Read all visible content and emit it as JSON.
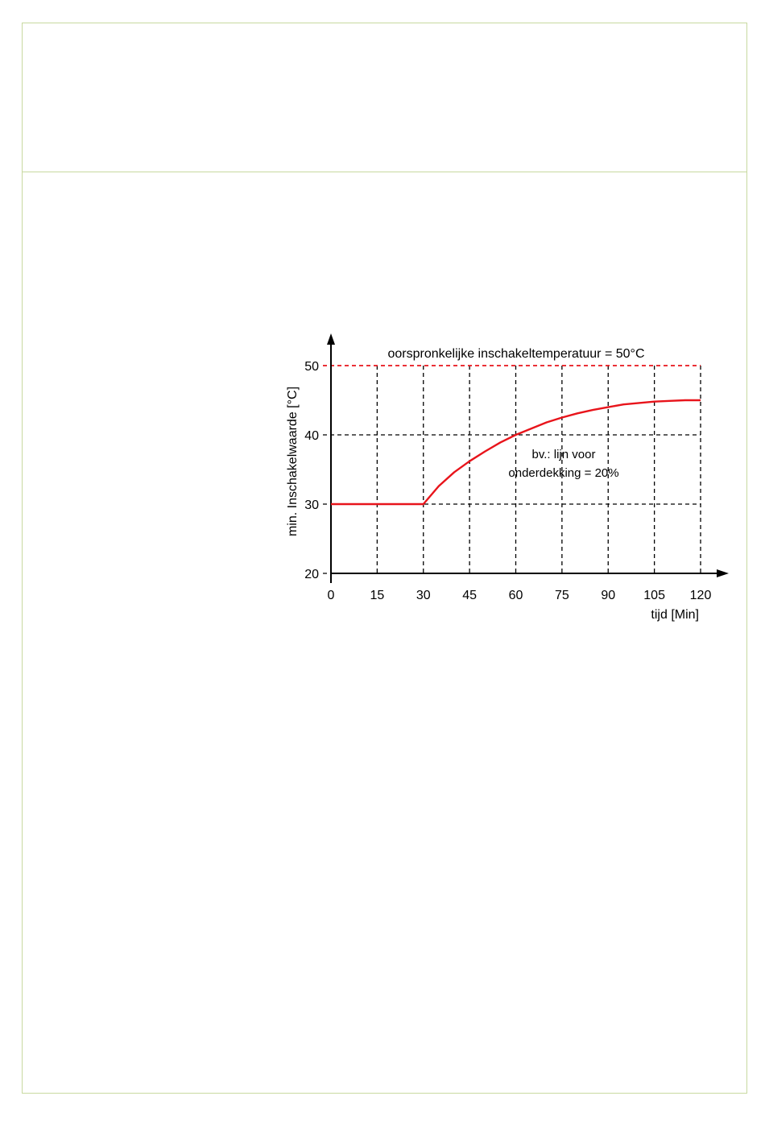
{
  "colors": {
    "frame": "#c8d9a0",
    "curve": "#e8141b",
    "reference": "#e8141b",
    "grid": "#000000"
  },
  "chart_data": {
    "type": "line",
    "title": "",
    "xlabel": "tijd [Min]",
    "ylabel": "min. Inschakelwaarde [°C]",
    "xlim": [
      0,
      120
    ],
    "ylim": [
      20,
      50
    ],
    "x_ticks": [
      0,
      15,
      30,
      45,
      60,
      75,
      90,
      105,
      120
    ],
    "y_ticks": [
      20,
      30,
      40,
      50
    ],
    "x_tick_labels": [
      "0",
      "15",
      "30",
      "45",
      "60",
      "75",
      "90",
      "105",
      "120"
    ],
    "y_tick_labels": [
      "20",
      "30",
      "40",
      "50"
    ],
    "grid": true,
    "reference_line": {
      "y": 50,
      "label": "oorspronkelijke inschakeltemperatuur = 50°C"
    },
    "series": [
      {
        "x": [
          0,
          15,
          30,
          35,
          40,
          45,
          50,
          55,
          60,
          65,
          70,
          75,
          80,
          85,
          90,
          95,
          100,
          105,
          110,
          115,
          120
        ],
        "values": [
          30,
          30,
          30,
          32.6,
          34.6,
          36.2,
          37.6,
          38.9,
          40.0,
          40.9,
          41.8,
          42.5,
          43.1,
          43.6,
          44.0,
          44.4,
          44.6,
          44.8,
          44.9,
          45.0,
          45.0
        ]
      }
    ],
    "annotations": [
      {
        "text_lines": [
          "bv.: lijn voor",
          "onderdekking = 20%"
        ]
      }
    ]
  }
}
